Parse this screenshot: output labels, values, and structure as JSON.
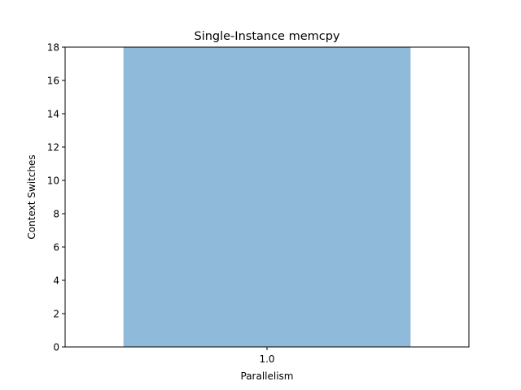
{
  "chart_data": {
    "type": "bar",
    "title": "Single-Instance memcpy",
    "xlabel": "Parallelism",
    "ylabel": "Context Switches",
    "categories": [
      "1.0"
    ],
    "values": [
      18
    ],
    "ylim": [
      0,
      18
    ],
    "yticks": [
      0,
      2,
      4,
      6,
      8,
      10,
      12,
      14,
      16,
      18
    ],
    "bar_color": "#8fbad9",
    "grid": false,
    "legend": "none"
  }
}
